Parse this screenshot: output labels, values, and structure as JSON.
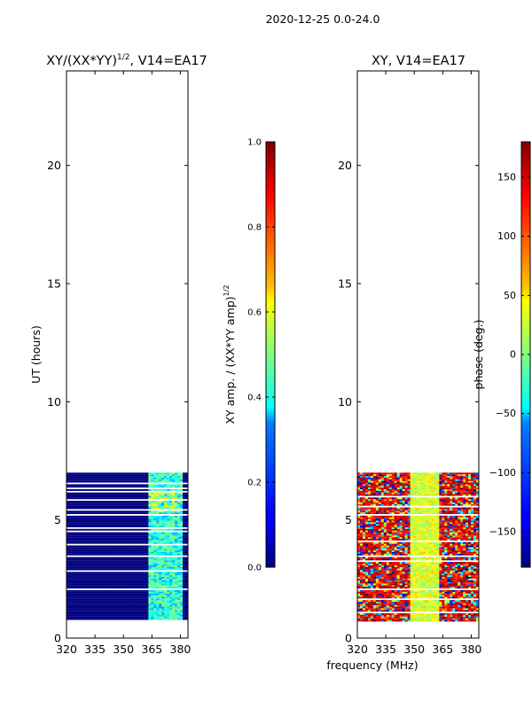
{
  "suptitle": "2020-12-25 0.0-24.0",
  "xlabel_shared": "frequency (MHz)",
  "colors": {
    "masked_white": "#ffffff",
    "low_amp": "#00007f",
    "frame": "#000000"
  },
  "chart_data": [
    {
      "type": "heatmap",
      "title": "XY/(XX*YY)¹ᐟ², V14=EA17",
      "title_main": "XY/(XX*YY)",
      "title_sup": "1/2",
      "title_rest": ", V14=EA17",
      "xlabel": "",
      "ylabel": "UT (hours)",
      "xlim": [
        320,
        384
      ],
      "ylim": [
        0,
        24
      ],
      "xticks": [
        320,
        335,
        350,
        365,
        380
      ],
      "yticks": [
        0,
        5,
        10,
        15,
        20
      ],
      "data_coverage_hours": [
        0.7,
        7.0
      ],
      "colorbar": {
        "label": "XY amp. / (XX*YY amp)",
        "label_sup": "1/2",
        "range": [
          0.0,
          1.0
        ],
        "ticks": [
          "0.0",
          "0.2",
          "0.4",
          "0.6",
          "0.8",
          "1.0"
        ],
        "tick_values": [
          0.0,
          0.2,
          0.4,
          0.6,
          0.8,
          1.0
        ],
        "colormap": "jet"
      }
    },
    {
      "type": "heatmap",
      "title": "XY, V14=EA17",
      "xlabel": "frequency (MHz)",
      "ylabel": "",
      "xlim": [
        320,
        384
      ],
      "ylim": [
        0,
        24
      ],
      "xticks": [
        320,
        335,
        350,
        365,
        380
      ],
      "yticks": [
        0,
        5,
        10,
        15,
        20
      ],
      "data_coverage_hours": [
        0.7,
        7.0
      ],
      "colorbar": {
        "label": "phase (deg.)",
        "range": [
          -180,
          180
        ],
        "ticks": [
          "150",
          "100",
          "50",
          "0",
          "−50",
          "−100",
          "−150"
        ],
        "tick_values": [
          150,
          100,
          50,
          0,
          -50,
          -100,
          -150
        ],
        "colormap": "jet"
      }
    }
  ]
}
